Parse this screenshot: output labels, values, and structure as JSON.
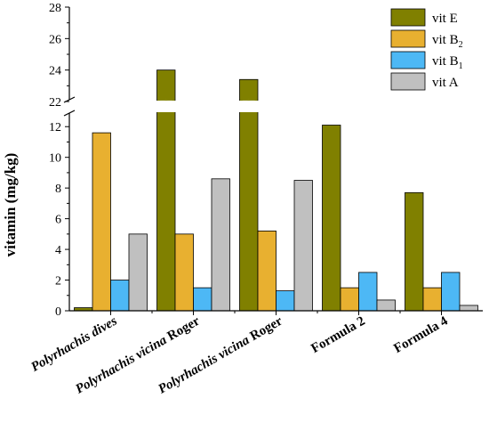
{
  "chart_data": {
    "type": "bar",
    "ylabel": "vitamin (mg/kg)",
    "xlabel": "",
    "title": "",
    "categories": [
      {
        "parts": [
          {
            "text": "Polyrhachis dives",
            "italic": true
          }
        ]
      },
      {
        "parts": [
          {
            "text": "Polyrhachis vicina",
            "italic": true
          },
          {
            "text": " Roger",
            "italic": false
          }
        ]
      },
      {
        "parts": [
          {
            "text": "Polyrhachis vicina",
            "italic": true
          },
          {
            "text": " Roger",
            "italic": false
          }
        ]
      },
      {
        "parts": [
          {
            "text": "Formula 2",
            "italic": false
          }
        ]
      },
      {
        "parts": [
          {
            "text": "Formula 4",
            "italic": false
          }
        ]
      }
    ],
    "series": [
      {
        "name": "vit E",
        "sub": "",
        "color": "#808000",
        "values": [
          0.2,
          24.0,
          23.4,
          12.1,
          7.7
        ]
      },
      {
        "name": "vit B",
        "sub": "2",
        "color": "#E8B030",
        "values": [
          11.6,
          5.0,
          5.2,
          1.5,
          1.5
        ]
      },
      {
        "name": "vit B",
        "sub": "1",
        "color": "#4DB8F5",
        "values": [
          2.0,
          1.5,
          1.3,
          2.5,
          2.5
        ]
      },
      {
        "name": "vit A",
        "sub": "",
        "color": "#C0C0C0",
        "values": [
          5.0,
          8.6,
          8.5,
          0.7,
          0.35
        ]
      }
    ],
    "axis_break": {
      "lower_range": [
        0,
        13
      ],
      "upper_range": [
        22,
        28
      ]
    },
    "lower_ticks": [
      0,
      2,
      4,
      6,
      8,
      10,
      12
    ],
    "upper_ticks": [
      22,
      24,
      26,
      28
    ],
    "legend_position": "top-right",
    "grid": false
  }
}
